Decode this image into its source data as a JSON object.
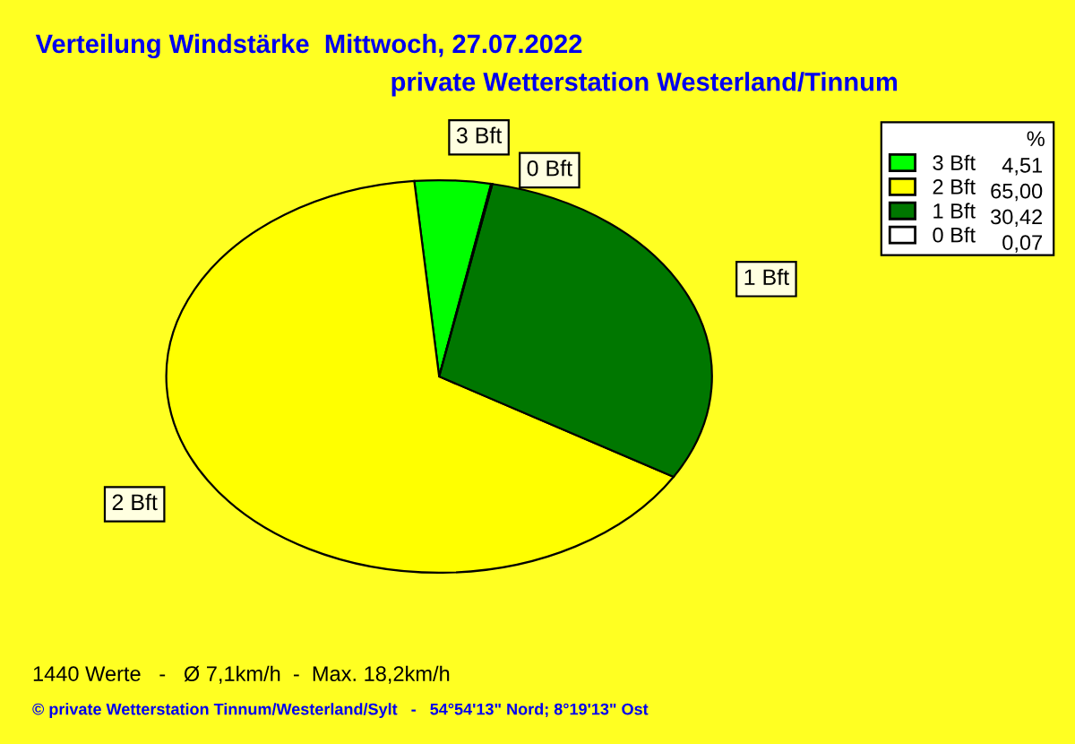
{
  "chart_data": {
    "type": "pie",
    "title": "Verteilung Windstärke  Mittwoch, 27.07.2022",
    "subtitle": "private Wetterstation Westerland/Tinnum",
    "categories": [
      "3 Bft",
      "2 Bft",
      "1 Bft",
      "0 Bft"
    ],
    "values": [
      4.51,
      65.0,
      30.42,
      0.07
    ],
    "value_labels": [
      "4,51",
      "65,00",
      "30,42",
      "0,07"
    ],
    "colors": [
      "#00ff00",
      "#ffff00",
      "#007700",
      "#ffffff"
    ],
    "legend": "top right",
    "legend_title": "%",
    "annotations": [
      "1440 Werte   -   Ø 7,1km/h  -  Max. 18,2km/h",
      "© private Wetterstation Tinnum/Westerland/Sylt   -   54°54'13\" Nord; 8°19'13\" Ost"
    ]
  }
}
